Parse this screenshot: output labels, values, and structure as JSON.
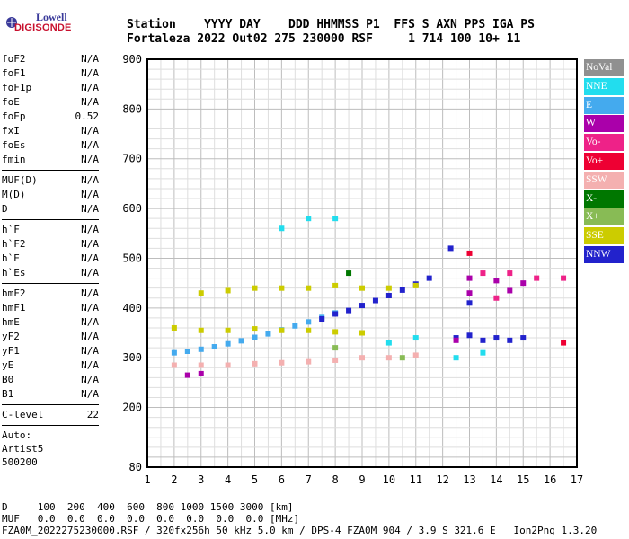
{
  "logo": {
    "line1": "Lowell",
    "line2": "DIGISONDE"
  },
  "header": {
    "line1": "Station    YYYY DAY    DDD HHMMSS P1  FFS S AXN PPS IGA PS",
    "line2": "Fortaleza 2022 Out02 275 230000 RSF     1 714 100 10+ 11"
  },
  "params": {
    "group1": [
      {
        "name": "foF2",
        "value": "N/A"
      },
      {
        "name": "foF1",
        "value": "N/A"
      },
      {
        "name": "foF1p",
        "value": "N/A"
      },
      {
        "name": "foE",
        "value": "N/A"
      },
      {
        "name": "foEp",
        "value": "0.52"
      },
      {
        "name": "fxI",
        "value": "N/A"
      },
      {
        "name": "foEs",
        "value": "N/A"
      },
      {
        "name": "fmin",
        "value": "N/A"
      }
    ],
    "group2": [
      {
        "name": "MUF(D)",
        "value": "N/A"
      },
      {
        "name": "M(D)",
        "value": "N/A"
      },
      {
        "name": "D",
        "value": "N/A"
      }
    ],
    "group3": [
      {
        "name": "h`F",
        "value": "N/A"
      },
      {
        "name": "h`F2",
        "value": "N/A"
      },
      {
        "name": "h`E",
        "value": "N/A"
      },
      {
        "name": "h`Es",
        "value": "N/A"
      }
    ],
    "group4": [
      {
        "name": "hmF2",
        "value": "N/A"
      },
      {
        "name": "hmF1",
        "value": "N/A"
      },
      {
        "name": "hmE",
        "value": "N/A"
      },
      {
        "name": "yF2",
        "value": "N/A"
      },
      {
        "name": "yF1",
        "value": "N/A"
      },
      {
        "name": "yE",
        "value": "N/A"
      },
      {
        "name": "B0",
        "value": "N/A"
      },
      {
        "name": "B1",
        "value": "N/A"
      }
    ],
    "group5": [
      {
        "name": "C-level",
        "value": "22"
      }
    ],
    "auto": [
      "Auto:",
      "Artist5",
      "500200"
    ]
  },
  "footer": {
    "line1": "D     100  200  400  600  800 1000 1500 3000 [km]",
    "line2": "MUF   0.0  0.0  0.0  0.0  0.0  0.0  0.0  0.0 [MHz]",
    "line3": "FZA0M_2022275230000.RSF / 320fx256h 50 kHz 5.0 km / DPS-4 FZA0M 904 / 3.9 S 321.6 E   Ion2Png 1.3.20"
  },
  "legend": [
    {
      "label": "NoVal",
      "color": "#909090"
    },
    {
      "label": "NNE",
      "color": "#22ddee"
    },
    {
      "label": "E",
      "color": "#44aaee"
    },
    {
      "label": "W",
      "color": "#aa00aa"
    },
    {
      "label": "Vo-",
      "color": "#ee2288"
    },
    {
      "label": "Vo+",
      "color": "#ee0033"
    },
    {
      "label": "SSW",
      "color": "#f4b0b0"
    },
    {
      "label": "X-",
      "color": "#007700"
    },
    {
      "label": "X+",
      "color": "#88bb55"
    },
    {
      "label": "SSE",
      "color": "#cccc00"
    },
    {
      "label": "NNW",
      "color": "#2222cc"
    }
  ],
  "chart_data": {
    "type": "scatter",
    "title": "",
    "xlabel": "",
    "ylabel": "",
    "xlim": [
      1,
      17
    ],
    "ylim": [
      80,
      900
    ],
    "grid": true,
    "x_ticks": [
      1,
      2,
      3,
      4,
      5,
      6,
      7,
      8,
      9,
      10,
      11,
      12,
      13,
      14,
      15,
      16,
      17
    ],
    "y_ticks": [
      80,
      200,
      300,
      400,
      500,
      600,
      700,
      800,
      900
    ],
    "legend_position": "right",
    "series": [
      {
        "name": "E",
        "color": "#44aaee",
        "points": [
          [
            2.0,
            310
          ],
          [
            2.5,
            313
          ],
          [
            3.0,
            317
          ],
          [
            3.5,
            322
          ],
          [
            4.0,
            328
          ],
          [
            4.5,
            334
          ],
          [
            5.0,
            341
          ],
          [
            5.5,
            348
          ],
          [
            6.0,
            356
          ],
          [
            6.5,
            364
          ],
          [
            7.0,
            372
          ],
          [
            7.5,
            381
          ],
          [
            8.0,
            390
          ]
        ]
      },
      {
        "name": "NNW",
        "color": "#2222cc",
        "points": [
          [
            7.5,
            378
          ],
          [
            8.0,
            388
          ],
          [
            8.5,
            395
          ],
          [
            9.0,
            405
          ],
          [
            9.5,
            415
          ],
          [
            10.0,
            425
          ],
          [
            10.5,
            436
          ],
          [
            11.0,
            448
          ],
          [
            11.5,
            460
          ],
          [
            12.5,
            340
          ],
          [
            13.0,
            345
          ],
          [
            13.5,
            335
          ],
          [
            14.0,
            340
          ],
          [
            14.5,
            335
          ],
          [
            15.0,
            340
          ],
          [
            13.0,
            410
          ],
          [
            12.3,
            520
          ]
        ]
      },
      {
        "name": "SSE",
        "color": "#cccc00",
        "points": [
          [
            2.0,
            360
          ],
          [
            3.0,
            355
          ],
          [
            4.0,
            355
          ],
          [
            5.0,
            358
          ],
          [
            6.0,
            355
          ],
          [
            7.0,
            355
          ],
          [
            8.0,
            352
          ],
          [
            9.0,
            350
          ],
          [
            3.0,
            430
          ],
          [
            4.0,
            435
          ],
          [
            5.0,
            440
          ],
          [
            6.0,
            440
          ],
          [
            7.0,
            440
          ],
          [
            8.0,
            445
          ],
          [
            9.0,
            440
          ],
          [
            10.0,
            440
          ],
          [
            11.0,
            445
          ]
        ]
      },
      {
        "name": "SSW",
        "color": "#f4b0b0",
        "points": [
          [
            2.0,
            285
          ],
          [
            3.0,
            285
          ],
          [
            4.0,
            285
          ],
          [
            5.0,
            288
          ],
          [
            6.0,
            290
          ],
          [
            7.0,
            292
          ],
          [
            8.0,
            295
          ],
          [
            9.0,
            300
          ],
          [
            10.0,
            300
          ],
          [
            11.0,
            305
          ]
        ]
      },
      {
        "name": "W",
        "color": "#aa00aa",
        "points": [
          [
            2.5,
            265
          ],
          [
            3.0,
            268
          ],
          [
            13.0,
            460
          ],
          [
            14.0,
            455
          ],
          [
            15.0,
            450
          ],
          [
            13.0,
            430
          ],
          [
            14.5,
            435
          ],
          [
            12.5,
            335
          ]
        ]
      },
      {
        "name": "NNE",
        "color": "#22ddee",
        "points": [
          [
            6.0,
            560
          ],
          [
            7.0,
            580
          ],
          [
            8.0,
            580
          ],
          [
            10.0,
            330
          ],
          [
            11.0,
            340
          ],
          [
            12.5,
            300
          ],
          [
            13.5,
            310
          ]
        ]
      },
      {
        "name": "Vo-",
        "color": "#ee2288",
        "points": [
          [
            13.5,
            470
          ],
          [
            14.5,
            470
          ],
          [
            15.5,
            460
          ],
          [
            16.5,
            460
          ],
          [
            14.0,
            420
          ]
        ]
      },
      {
        "name": "Vo+",
        "color": "#ee0033",
        "points": [
          [
            16.5,
            330
          ],
          [
            13.0,
            510
          ]
        ]
      },
      {
        "name": "X+",
        "color": "#88bb55",
        "points": [
          [
            8.0,
            320
          ],
          [
            10.5,
            300
          ]
        ]
      },
      {
        "name": "X-",
        "color": "#007700",
        "points": [
          [
            8.5,
            470
          ]
        ]
      }
    ]
  }
}
